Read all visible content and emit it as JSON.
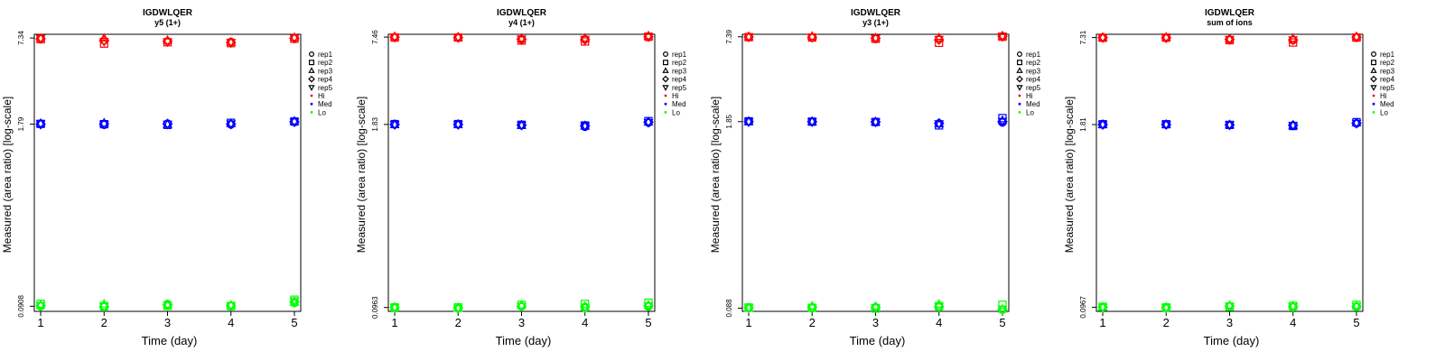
{
  "legend_labels": [
    "rep1",
    "rep2",
    "rep3",
    "rep4",
    "rep5",
    "Hi",
    "Med",
    "Lo"
  ],
  "legend_shapes": [
    "circle",
    "square",
    "triangle-up",
    "diamond",
    "triangle-down",
    "dot",
    "dot",
    "dot"
  ],
  "level_colors": {
    "Hi": "#ff0000",
    "Med": "#0000ff",
    "Lo": "#00ff00"
  },
  "chart_data": [
    {
      "type": "scatter",
      "title": "IGDWLQER",
      "subtitle": "y5 (1+)",
      "xlabel": "Time (day)",
      "ylabel": "Measured (area ratio) [log-scale]",
      "y_scale": "log",
      "x_ticks": [
        1,
        2,
        3,
        4,
        5
      ],
      "y_ticks": [
        0.0908,
        1.79,
        7.34
      ],
      "x_range": [
        0.9,
        5.1
      ],
      "y_range": [
        0.0835,
        7.8
      ],
      "series": [
        {
          "name": "Hi",
          "color": "#ff0000",
          "reps": [
            [
              7.34,
              7.05,
              6.95,
              6.9,
              7.35
            ],
            [
              7.2,
              6.7,
              6.85,
              6.75,
              7.25
            ],
            [
              7.3,
              7.3,
              7.05,
              6.85,
              7.4
            ],
            [
              7.25,
              7.05,
              6.95,
              6.8,
              7.3
            ],
            [
              7.3,
              6.95,
              6.9,
              6.85,
              7.35
            ]
          ]
        },
        {
          "name": "Med",
          "color": "#0000ff",
          "reps": [
            [
              1.79,
              1.77,
              1.81,
              1.78,
              1.85
            ],
            [
              1.8,
              1.79,
              1.77,
              1.83,
              1.87
            ],
            [
              1.81,
              1.82,
              1.78,
              1.8,
              1.88
            ],
            [
              1.79,
              1.8,
              1.8,
              1.79,
              1.86
            ],
            [
              1.8,
              1.79,
              1.79,
              1.8,
              1.86
            ]
          ]
        },
        {
          "name": "Lo",
          "color": "#00ff00",
          "reps": [
            [
              0.0908,
              0.0895,
              0.0945,
              0.092,
              0.0955
            ],
            [
              0.0945,
              0.091,
              0.0915,
              0.091,
              0.101
            ],
            [
              0.092,
              0.094,
              0.0925,
              0.0925,
              0.0965
            ],
            [
              0.0915,
              0.09,
              0.093,
              0.0915,
              0.0975
            ],
            [
              0.092,
              0.0905,
              0.0925,
              0.092,
              0.099
            ]
          ]
        }
      ]
    },
    {
      "type": "scatter",
      "title": "IGDWLQER",
      "subtitle": "y4 (1+)",
      "xlabel": "Time (day)",
      "ylabel": "Measured (area ratio) [log-scale]",
      "y_scale": "log",
      "x_ticks": [
        1,
        2,
        3,
        4,
        5
      ],
      "y_ticks": [
        0.0963,
        1.83,
        7.46
      ],
      "x_range": [
        0.9,
        5.1
      ],
      "y_range": [
        0.0905,
        7.8
      ],
      "series": [
        {
          "name": "Hi",
          "color": "#ff0000",
          "reps": [
            [
              7.46,
              7.45,
              7.15,
              7.2,
              7.45
            ],
            [
              7.4,
              7.4,
              7.05,
              6.95,
              7.5
            ],
            [
              7.5,
              7.45,
              7.3,
              7.3,
              7.6
            ],
            [
              7.45,
              7.4,
              7.2,
              7.15,
              7.5
            ],
            [
              7.45,
              7.42,
              7.25,
              7.2,
              7.55
            ]
          ]
        },
        {
          "name": "Med",
          "color": "#0000ff",
          "reps": [
            [
              1.83,
              1.83,
              1.81,
              1.76,
              1.88
            ],
            [
              1.84,
              1.84,
              1.82,
              1.8,
              1.93
            ],
            [
              1.82,
              1.83,
              1.8,
              1.78,
              1.9
            ],
            [
              1.83,
              1.83,
              1.81,
              1.79,
              1.9
            ],
            [
              1.83,
              1.83,
              1.81,
              1.79,
              1.89
            ]
          ]
        },
        {
          "name": "Med",
          "color": "#0000ff",
          "reps": []
        },
        {
          "name": "Lo",
          "color": "#00ff00",
          "reps": [
            [
              0.0963,
              0.0945,
              0.098,
              0.0955,
              0.0975
            ],
            [
              0.0965,
              0.0965,
              0.1005,
              0.102,
              0.104
            ],
            [
              0.0965,
              0.095,
              0.1,
              0.097,
              0.1
            ],
            [
              0.0965,
              0.096,
              0.0985,
              0.0975,
              0.099
            ],
            [
              0.0963,
              0.0955,
              0.098,
              0.0965,
              0.099
            ]
          ]
        }
      ]
    },
    {
      "type": "scatter",
      "title": "IGDWLQER",
      "subtitle": "y3 (1+)",
      "xlabel": "Time (day)",
      "ylabel": "Measured (area ratio) [log-scale]",
      "y_scale": "log",
      "x_ticks": [
        1,
        2,
        3,
        4,
        5
      ],
      "y_ticks": [
        0.088,
        1.85,
        7.39
      ],
      "x_range": [
        0.9,
        5.1
      ],
      "y_range": [
        0.0835,
        7.7
      ],
      "series": [
        {
          "name": "Hi",
          "color": "#ff0000",
          "reps": [
            [
              7.39,
              7.3,
              7.2,
              7.1,
              7.45
            ],
            [
              7.35,
              7.3,
              7.15,
              6.7,
              7.4
            ],
            [
              7.4,
              7.45,
              7.25,
              7.25,
              7.5
            ],
            [
              7.38,
              7.32,
              7.2,
              7.05,
              7.45
            ],
            [
              7.38,
              7.33,
              7.22,
              7.1,
              7.45
            ]
          ]
        },
        {
          "name": "Med",
          "color": "#0000ff",
          "reps": [
            [
              1.85,
              1.84,
              1.83,
              1.8,
              1.82
            ],
            [
              1.86,
              1.85,
              1.84,
              1.74,
              1.96
            ],
            [
              1.85,
              1.85,
              1.84,
              1.78,
              1.88
            ],
            [
              1.85,
              1.85,
              1.84,
              1.8,
              1.85
            ],
            [
              1.85,
              1.85,
              1.84,
              1.79,
              1.86
            ]
          ]
        },
        {
          "name": "Lo",
          "color": "#00ff00",
          "reps": [
            [
              0.088,
              0.0875,
              0.0895,
              0.089,
              0.0855
            ],
            [
              0.089,
              0.0885,
              0.0875,
              0.091,
              0.093
            ],
            [
              0.088,
              0.091,
              0.0905,
              0.0935,
              0.0865
            ],
            [
              0.0885,
              0.0895,
              0.089,
              0.09,
              0.086
            ],
            [
              0.0885,
              0.089,
              0.089,
              0.0905,
              0.0865
            ]
          ]
        }
      ]
    },
    {
      "type": "scatter",
      "title": "IGDWLQER",
      "subtitle": "sum of ions",
      "xlabel": "Time (day)",
      "ylabel": "Measured (area ratio) [log-scale]",
      "y_scale": "log",
      "x_ticks": [
        1,
        2,
        3,
        4,
        5
      ],
      "y_ticks": [
        0.0967,
        1.81,
        7.31
      ],
      "x_range": [
        0.9,
        5.1
      ],
      "y_range": [
        0.0905,
        7.7
      ],
      "series": [
        {
          "name": "Hi",
          "color": "#ff0000",
          "reps": [
            [
              7.31,
              7.25,
              7.05,
              7.0,
              7.35
            ],
            [
              7.28,
              7.3,
              7.0,
              6.75,
              7.3
            ],
            [
              7.32,
              7.35,
              7.15,
              7.2,
              7.4
            ],
            [
              7.3,
              7.28,
              7.1,
              7.05,
              7.35
            ],
            [
              7.3,
              7.28,
              7.1,
              7.05,
              7.35
            ]
          ]
        },
        {
          "name": "Med",
          "color": "#0000ff",
          "reps": [
            [
              1.81,
              1.81,
              1.8,
              1.79,
              1.84
            ],
            [
              1.82,
              1.82,
              1.8,
              1.77,
              1.88
            ],
            [
              1.81,
              1.81,
              1.8,
              1.78,
              1.86
            ],
            [
              1.81,
              1.81,
              1.8,
              1.79,
              1.85
            ],
            [
              1.81,
              1.81,
              1.8,
              1.79,
              1.85
            ]
          ]
        },
        {
          "name": "Lo",
          "color": "#00ff00",
          "reps": [
            [
              0.0967,
              0.0955,
              0.0985,
              0.0965,
              0.097
            ],
            [
              0.0975,
              0.0965,
              0.0975,
              0.099,
              0.1005
            ],
            [
              0.0965,
              0.096,
              0.0995,
              0.0985,
              0.0985
            ],
            [
              0.0967,
              0.0962,
              0.0985,
              0.0975,
              0.098
            ],
            [
              0.0967,
              0.096,
              0.0985,
              0.0975,
              0.098
            ]
          ]
        }
      ]
    }
  ]
}
